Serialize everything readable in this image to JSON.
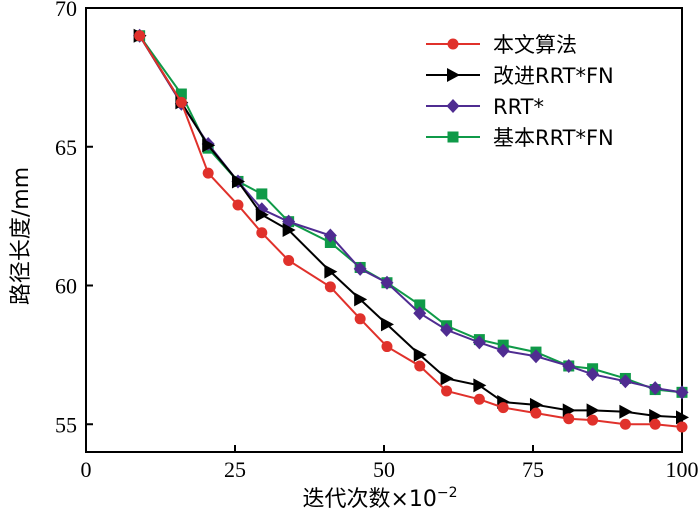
{
  "chart_data": {
    "type": "line",
    "xlabel": "迭代次数×10",
    "xlabel_exponent": "−2",
    "ylabel": "路径长度/mm",
    "xlim": [
      0,
      100
    ],
    "ylim": [
      54,
      70
    ],
    "xticks": [
      0,
      25,
      50,
      75,
      100
    ],
    "yticks": [
      55,
      60,
      65,
      70
    ],
    "grid": false,
    "legend_position": "top-right",
    "series": [
      {
        "name": "本文算法",
        "color": "#e0312b",
        "marker": "circle",
        "x": [
          9,
          16,
          20.5,
          25.5,
          29.5,
          34,
          41,
          46,
          50.5,
          56,
          60.5,
          66,
          70,
          75.5,
          81,
          85,
          90.5,
          95.5,
          100
        ],
        "y": [
          69,
          66.6,
          64.05,
          62.9,
          61.9,
          60.9,
          59.95,
          58.8,
          57.8,
          57.1,
          56.2,
          55.9,
          55.6,
          55.4,
          55.2,
          55.15,
          55.0,
          55.0,
          54.9
        ]
      },
      {
        "name": "改进RRT*FN",
        "color": "#000000",
        "marker": "triangle-right",
        "x": [
          9,
          16,
          20.5,
          25.5,
          29.5,
          34,
          41,
          46,
          50.5,
          56,
          60.5,
          66,
          70,
          75.5,
          81,
          85,
          90.5,
          95.5,
          100
        ],
        "y": [
          69,
          66.6,
          65.05,
          63.75,
          62.55,
          62.0,
          60.5,
          59.5,
          58.6,
          57.5,
          56.65,
          56.4,
          55.8,
          55.7,
          55.5,
          55.5,
          55.45,
          55.3,
          55.25
        ]
      },
      {
        "name": "RRT*",
        "color": "#4f2c91",
        "marker": "diamond",
        "x": [
          9,
          16,
          20.5,
          25.5,
          29.5,
          34,
          41,
          46,
          50.5,
          56,
          60.5,
          66,
          70,
          75.5,
          81,
          85,
          90.5,
          95.5,
          100
        ],
        "y": [
          69,
          66.55,
          65.1,
          63.75,
          62.75,
          62.3,
          61.8,
          60.6,
          60.1,
          59.0,
          58.4,
          57.95,
          57.65,
          57.45,
          57.1,
          56.8,
          56.55,
          56.3,
          56.15
        ]
      },
      {
        "name": "基本RRT*FN",
        "color": "#0f9a48",
        "marker": "square",
        "x": [
          9,
          16,
          20.5,
          25.5,
          29.5,
          34,
          41,
          46,
          50.5,
          56,
          60.5,
          66,
          70,
          75.5,
          81,
          85,
          90.5,
          95.5,
          100
        ],
        "y": [
          69,
          66.9,
          64.95,
          63.75,
          63.3,
          62.3,
          61.55,
          60.65,
          60.1,
          59.3,
          58.55,
          58.05,
          57.85,
          57.6,
          57.1,
          57.0,
          56.65,
          56.25,
          56.15
        ]
      }
    ]
  }
}
